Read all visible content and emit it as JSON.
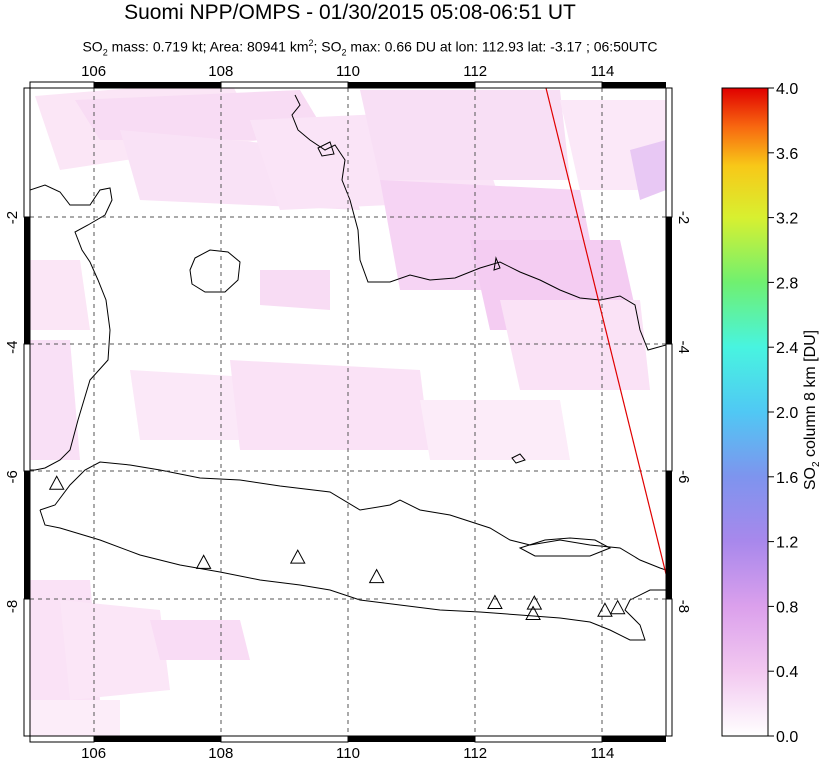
{
  "title": "Suomi NPP/OMPS - 01/30/2015 05:08-06:51 UT",
  "subtitle": {
    "so2": "SO",
    "mass_label": " mass: 0.719 kt; Area: 80941 km",
    "area_tail": "; SO",
    "max_text": " max: 0.66 DU at lon: 112.93 lat: -3.17 ; 06:50UTC",
    "sub2": "2",
    "sup2": "2"
  },
  "map": {
    "lon_range": [
      105,
      115
    ],
    "lat_range": [
      -10,
      0
    ],
    "lon_ticks": [
      "106",
      "108",
      "110",
      "112",
      "114"
    ],
    "lat_ticks": [
      "-2",
      "-4",
      "-6",
      "-8"
    ],
    "lon_tick_values": [
      106,
      108,
      110,
      112,
      114
    ],
    "lat_tick_values": [
      -2,
      -4,
      -6,
      -8
    ],
    "volcano_icon": "triangle-icon",
    "volcanoes": [
      {
        "lon": 105.42,
        "lat": -6.1
      },
      {
        "lon": 107.73,
        "lat": -7.32
      },
      {
        "lon": 109.21,
        "lat": -7.24
      },
      {
        "lon": 110.45,
        "lat": -7.54
      },
      {
        "lon": 112.31,
        "lat": -7.94
      },
      {
        "lon": 112.93,
        "lat": -7.95
      },
      {
        "lon": 112.91,
        "lat": -8.11
      },
      {
        "lon": 114.04,
        "lat": -8.06
      },
      {
        "lon": 114.24,
        "lat": -8.02
      }
    ],
    "swath_edge_color": "#e00000",
    "coast_color": "#000000"
  },
  "colorbar": {
    "label_prefix": "SO",
    "label_sub": "2",
    "label_suffix": " column 8 km [DU]",
    "ticks": [
      "4.0",
      "3.6",
      "3.2",
      "2.8",
      "2.4",
      "2.0",
      "1.6",
      "1.2",
      "0.8",
      "0.4",
      "0.0"
    ],
    "min": 0.0,
    "max": 4.0,
    "colors": [
      "#ffffff",
      "#f2c8f0",
      "#d88ce8",
      "#9a84ec",
      "#5aa0f0",
      "#3cd8f8",
      "#5cf8c0",
      "#a8f050",
      "#f0f020",
      "#f8a010",
      "#f03010",
      "#e00000"
    ]
  }
}
